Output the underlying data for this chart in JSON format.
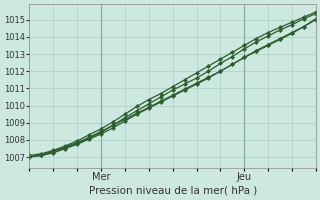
{
  "title": "Pression niveau de la mer( hPa )",
  "ylabel_ticks": [
    1007,
    1008,
    1009,
    1010,
    1011,
    1012,
    1013,
    1014,
    1015
  ],
  "ylim": [
    1006.4,
    1015.9
  ],
  "xlim": [
    0,
    48
  ],
  "xtick_positions": [
    12,
    36
  ],
  "xtick_labels": [
    "Mer",
    "Jeu"
  ],
  "vline_positions": [
    12,
    36
  ],
  "bg_color": "#cce8e0",
  "grid_color": "#aaccbb",
  "line_color": "#2d5e2d",
  "figsize": [
    3.2,
    2.0
  ],
  "dpi": 100,
  "series_x": [
    [
      0,
      2,
      4,
      6,
      8,
      10,
      12,
      14,
      16,
      18,
      20,
      22,
      24,
      26,
      28,
      30,
      32,
      34,
      36,
      38,
      40,
      42,
      44,
      46,
      48
    ],
    [
      0,
      2,
      4,
      6,
      8,
      10,
      12,
      14,
      16,
      18,
      20,
      22,
      24,
      26,
      28,
      30,
      32,
      34,
      36,
      38,
      40,
      42,
      44,
      46,
      48
    ],
    [
      0,
      2,
      4,
      6,
      8,
      10,
      12,
      14,
      16,
      18,
      20,
      22,
      24,
      26,
      28,
      30,
      32,
      34,
      36,
      38,
      40,
      42,
      44,
      46,
      48
    ],
    [
      0,
      2,
      4,
      6,
      8,
      10,
      12,
      14,
      16,
      18,
      20,
      22,
      24,
      26,
      28,
      30,
      32,
      34,
      36,
      38,
      40,
      42,
      44,
      46,
      48
    ]
  ],
  "series_y": [
    [
      1007.0,
      1007.15,
      1007.35,
      1007.6,
      1007.85,
      1008.15,
      1008.5,
      1008.85,
      1009.2,
      1009.55,
      1009.9,
      1010.25,
      1010.6,
      1010.95,
      1011.3,
      1011.65,
      1012.0,
      1012.4,
      1012.8,
      1013.15,
      1013.5,
      1013.85,
      1014.2,
      1014.6,
      1015.0
    ],
    [
      1007.0,
      1007.1,
      1007.25,
      1007.5,
      1007.75,
      1008.05,
      1008.35,
      1008.7,
      1009.1,
      1009.5,
      1009.85,
      1010.2,
      1010.55,
      1010.9,
      1011.25,
      1011.6,
      1012.0,
      1012.4,
      1012.8,
      1013.2,
      1013.55,
      1013.9,
      1014.25,
      1014.6,
      1015.05
    ],
    [
      1007.05,
      1007.1,
      1007.3,
      1007.55,
      1007.8,
      1008.1,
      1008.45,
      1008.85,
      1009.3,
      1009.7,
      1010.1,
      1010.5,
      1010.9,
      1011.25,
      1011.6,
      1012.0,
      1012.45,
      1012.85,
      1013.3,
      1013.7,
      1014.05,
      1014.4,
      1014.7,
      1015.05,
      1015.35
    ],
    [
      1007.1,
      1007.2,
      1007.4,
      1007.65,
      1007.95,
      1008.3,
      1008.65,
      1009.05,
      1009.5,
      1009.95,
      1010.35,
      1010.7,
      1011.1,
      1011.5,
      1011.9,
      1012.3,
      1012.7,
      1013.1,
      1013.5,
      1013.9,
      1014.25,
      1014.55,
      1014.85,
      1015.15,
      1015.45
    ]
  ]
}
